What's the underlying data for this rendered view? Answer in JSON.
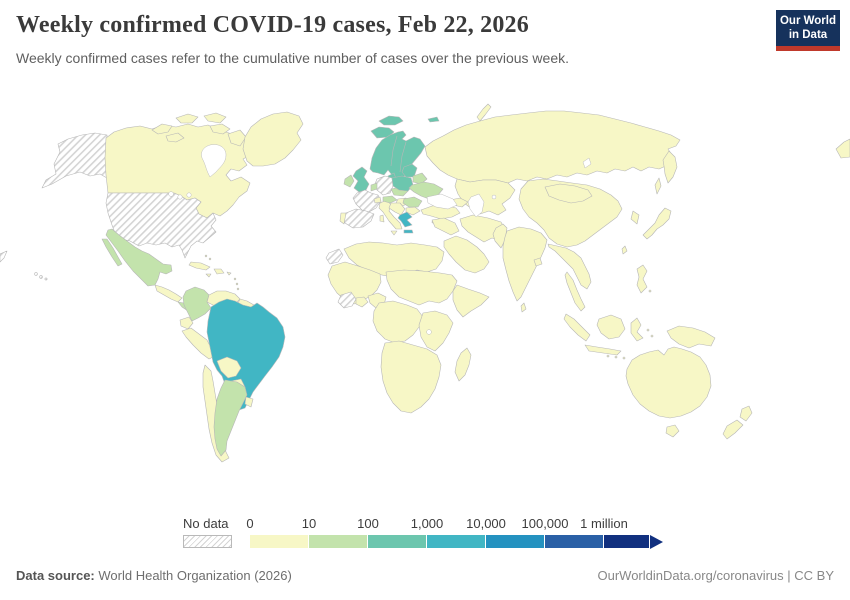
{
  "header": {
    "title": "Weekly confirmed COVID-19 cases, Feb 22, 2026",
    "subtitle": "Weekly confirmed cases refer to the cumulative number of cases over the previous week.",
    "logo": {
      "line1": "Our World",
      "line2": "in Data",
      "bg": "#16325c",
      "accent": "#c0392b"
    }
  },
  "legend": {
    "no_data_label": "No data",
    "tick_labels": [
      "0",
      "10",
      "100",
      "1,000",
      "10,000",
      "100,000",
      "1 million"
    ],
    "colors": [
      "#f7f7c6",
      "#c3e3ac",
      "#6cc6ae",
      "#41b6c4",
      "#2492c0",
      "#2a60a6",
      "#11307f"
    ]
  },
  "footer": {
    "source_label": "Data source:",
    "source_value": "World Health Organization (2026)",
    "attribution": "OurWorldinData.org/coronavirus | CC BY"
  },
  "chart_data": {
    "type": "heatmap",
    "title": "Weekly confirmed COVID-19 cases, Feb 22, 2026",
    "date": "Feb 22, 2026",
    "legend_position": "bottom",
    "scale_type": "log",
    "bins": [
      "No data",
      "0-10",
      "10-100",
      "100-1,000",
      "1,000-10,000",
      "10,000-100,000",
      "100,000-1 million",
      "1 million+"
    ],
    "bin_colors": [
      "hatched",
      "#f7f7c6",
      "#c3e3ac",
      "#6cc6ae",
      "#41b6c4",
      "#2492c0",
      "#2a60a6",
      "#11307f"
    ],
    "regions_by_bin": {
      "no_data": [
        "United States",
        "Alaska",
        "Hawaii",
        "France",
        "Germany",
        "Spain",
        "Western Sahara",
        "Cote d'Ivoire"
      ],
      "1,000-10,000": [
        "Brazil",
        "Greece"
      ],
      "100-1,000": [
        "Iceland",
        "Norway",
        "Sweden",
        "Finland",
        "Svalbard",
        "Denmark",
        "United Kingdom",
        "Poland",
        "Baltic states"
      ],
      "10-100": [
        "Mexico",
        "Costa Rica",
        "Panama",
        "Colombia",
        "Argentina",
        "Ireland",
        "Benelux",
        "Austria",
        "Czechia",
        "Slovakia",
        "Belarus",
        "Ukraine",
        "Romania"
      ],
      "0-10": [
        "Canada",
        "Greenland",
        "Russia",
        "China",
        "India",
        "Japan",
        "Italy",
        "Portugal",
        "Turkey",
        "Middle East",
        "most of Africa",
        "most of Asia",
        "Peru",
        "Chile",
        "Venezuela",
        "Bolivia",
        "Paraguay",
        "Uruguay",
        "Australia",
        "New Zealand",
        "Indonesia"
      ]
    }
  },
  "map": {
    "border_color": "#b7b7b7",
    "ocean_color": "#ffffff",
    "regions": {
      "alaska": "no_data",
      "aleutians-wrap": "no_data",
      "hawaii": "no_data",
      "united-states": "no_data",
      "france": "no_data",
      "germany": "no_data",
      "spain": "no_data",
      "western-sahara": "no_data",
      "cote-divoire": "no_data",
      "mexico": 1,
      "costa-rica-panama": 1,
      "colombia": 1,
      "argentina": 1,
      "ireland": 1,
      "benelux": 1,
      "austria": 1,
      "czech-slovakia": 1,
      "belarus": 1,
      "ukraine": 1,
      "romania": 1,
      "iceland": 2,
      "svalbard": 2,
      "svalbard-east": 2,
      "scandinavia": 2,
      "denmark": 2,
      "united-kingdom": 2,
      "poland": 2,
      "baltics": 2,
      "brazil": 3,
      "greece": 3,
      "crete": 3,
      "canada": 0,
      "greenland": 0,
      "central-america": 0,
      "cuba": 0,
      "hispaniola": 0,
      "jamaica": 0,
      "puerto-rico": 0,
      "bahamas": 0,
      "lesser-antilles": 0,
      "venezuela": 0,
      "guyanas": 0,
      "ecuador": 0,
      "peru": 0,
      "bolivia": 0,
      "paraguay": 0,
      "chile": 0,
      "uruguay": 0,
      "portugal": 0,
      "italy": 0,
      "sicily": 0,
      "sardinia": 0,
      "switzerland": 0,
      "hungary": 0,
      "balkans": 0,
      "bulgaria": 0,
      "cyprus": 0,
      "turkey": 0,
      "caucasus": 0,
      "syria-iraq": 0,
      "iran": 0,
      "arabia": 0,
      "kazakhstan": 0,
      "russia": 0,
      "russia-kamchatka": 0,
      "sakhalin": 0,
      "chukotka-wrap": 0,
      "novaya-zemlya": 0,
      "mongolia": 0,
      "china": 0,
      "taiwan": 0,
      "korea": 0,
      "japan": 0,
      "pakistan": 0,
      "india": 0,
      "bangladesh": 0,
      "sri-lanka": 0,
      "myanmar-indochina": 0,
      "thailand-malay": 0,
      "sumatra": 0,
      "java": 0,
      "borneo": 0,
      "sulawesi": 0,
      "lesser-sunda": 0,
      "moluccas": 0,
      "new-guinea": 0,
      "philippines": 0,
      "north-africa": 0,
      "sahel": 0,
      "ghana-benin": 0,
      "nigeria": 0,
      "chad-sudan": 0,
      "horn-of-africa": 0,
      "central-africa": 0,
      "east-africa": 0,
      "southern-africa": 0,
      "madagascar": 0,
      "australia": 0,
      "tasmania": 0,
      "new-zealand-north": 0,
      "new-zealand-south": 0
    }
  }
}
